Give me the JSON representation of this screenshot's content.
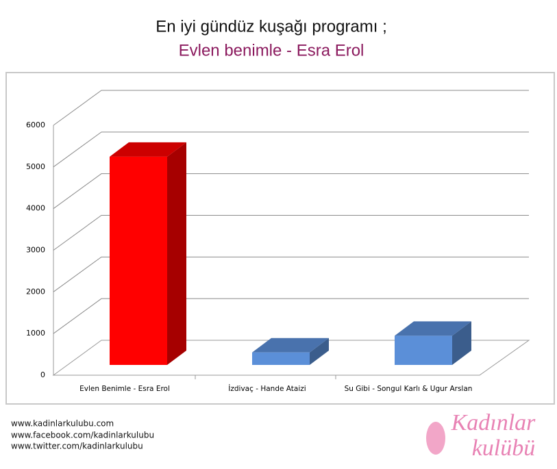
{
  "chart_data": {
    "type": "bar3d",
    "title": "En iyi gündüz kuşağı programı ;",
    "subtitle": "Evlen benimle - Esra Erol",
    "categories": [
      "Evlen Benimle - Esra Erol",
      "İzdivaç - Hande Ataizi",
      "Su Gibi - Songul Karlı & Ugur Arslan"
    ],
    "values": [
      5000,
      300,
      700
    ],
    "colors": [
      "#ff0000",
      "#5b8fd8",
      "#5b8fd8"
    ],
    "ylim": [
      0,
      6000
    ],
    "yticks": [
      0,
      1000,
      2000,
      3000,
      4000,
      5000,
      6000
    ],
    "grid": true
  },
  "footer": [
    "www.kadinlarkulubu.com",
    "www.facebook.com/kadinlarkulubu",
    "www.twitter.com/kadinlarkulubu"
  ],
  "logo": [
    "Kadınlar",
    "kulübü"
  ]
}
